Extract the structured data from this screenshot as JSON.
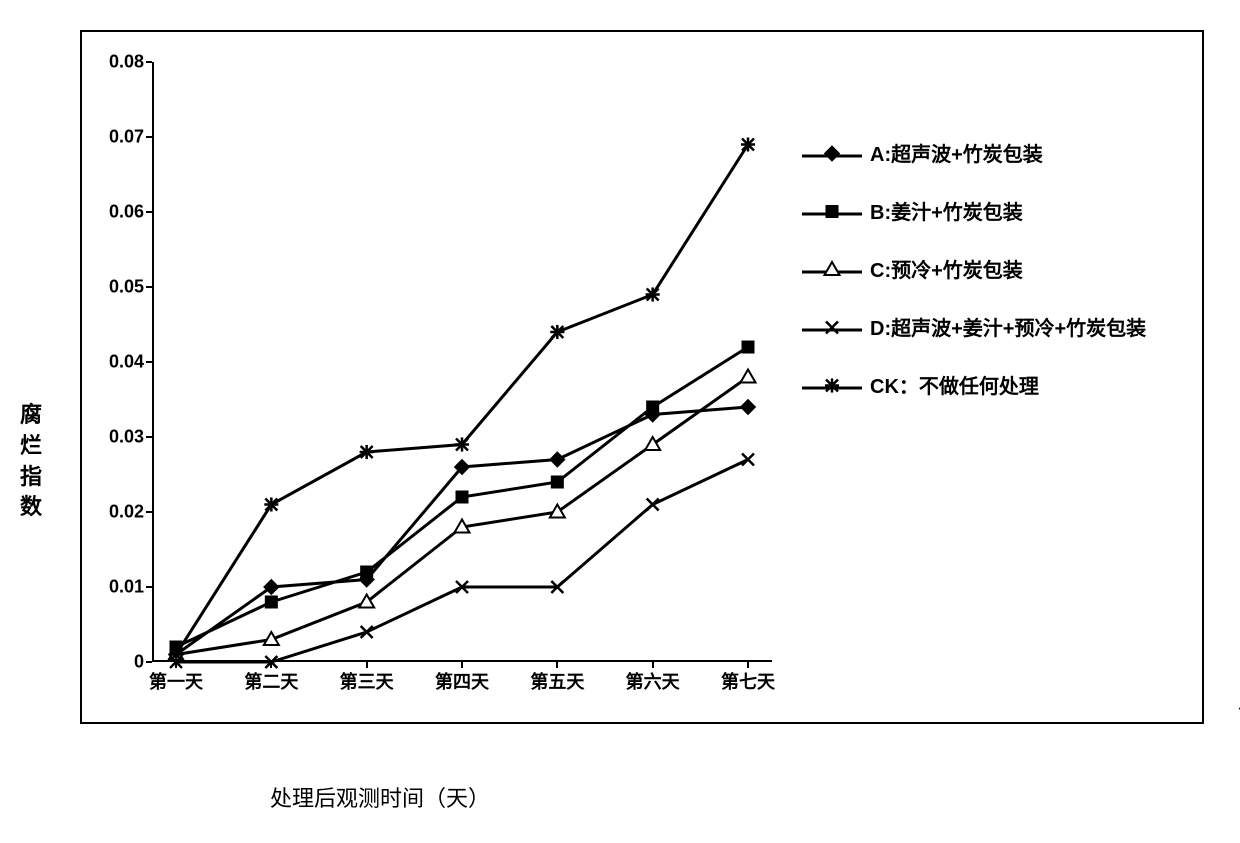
{
  "chart": {
    "type": "line",
    "background_color": "#ffffff",
    "border_color": "#000000",
    "line_color": "#000000",
    "line_width": 3,
    "marker_size": 12,
    "ylim": [
      0,
      0.08
    ],
    "ytick_step": 0.01,
    "yticks": [
      "0",
      "0.01",
      "0.02",
      "0.03",
      "0.04",
      "0.05",
      "0.06",
      "0.07",
      "0.08"
    ],
    "categories": [
      "第一天",
      "第二天",
      "第三天",
      "第四天",
      "第五天",
      "第六天",
      "第七天"
    ],
    "y_axis_title": "腐烂指数",
    "x_axis_title": "处理后观测时间（天）",
    "tick_fontsize": 18,
    "axis_title_fontsize": 22,
    "legend_fontsize": 20,
    "series": [
      {
        "key": "A",
        "label": "A:超声波+竹炭包装",
        "marker": "diamond",
        "marker_fill": "#000000",
        "values": [
          0.001,
          0.01,
          0.011,
          0.026,
          0.027,
          0.033,
          0.034
        ]
      },
      {
        "key": "B",
        "label": "B:姜汁+竹炭包装",
        "marker": "square",
        "marker_fill": "#000000",
        "values": [
          0.002,
          0.008,
          0.012,
          0.022,
          0.024,
          0.034,
          0.042
        ]
      },
      {
        "key": "C",
        "label": "C:预冷+竹炭包装",
        "marker": "triangle",
        "marker_fill": "#ffffff",
        "values": [
          0.001,
          0.003,
          0.008,
          0.018,
          0.02,
          0.029,
          0.038
        ]
      },
      {
        "key": "D",
        "label": "D:超声波+姜汁+预冷+竹炭包装",
        "marker": "x",
        "marker_fill": "#000000",
        "values": [
          0.0,
          0.0,
          0.004,
          0.01,
          0.01,
          0.021,
          0.027
        ]
      },
      {
        "key": "CK",
        "label": "CK：不做任何处理",
        "marker": "asterisk",
        "marker_fill": "#000000",
        "values": [
          0.001,
          0.021,
          0.028,
          0.029,
          0.044,
          0.049,
          0.069
        ]
      }
    ]
  },
  "trailing_mark": "↵"
}
